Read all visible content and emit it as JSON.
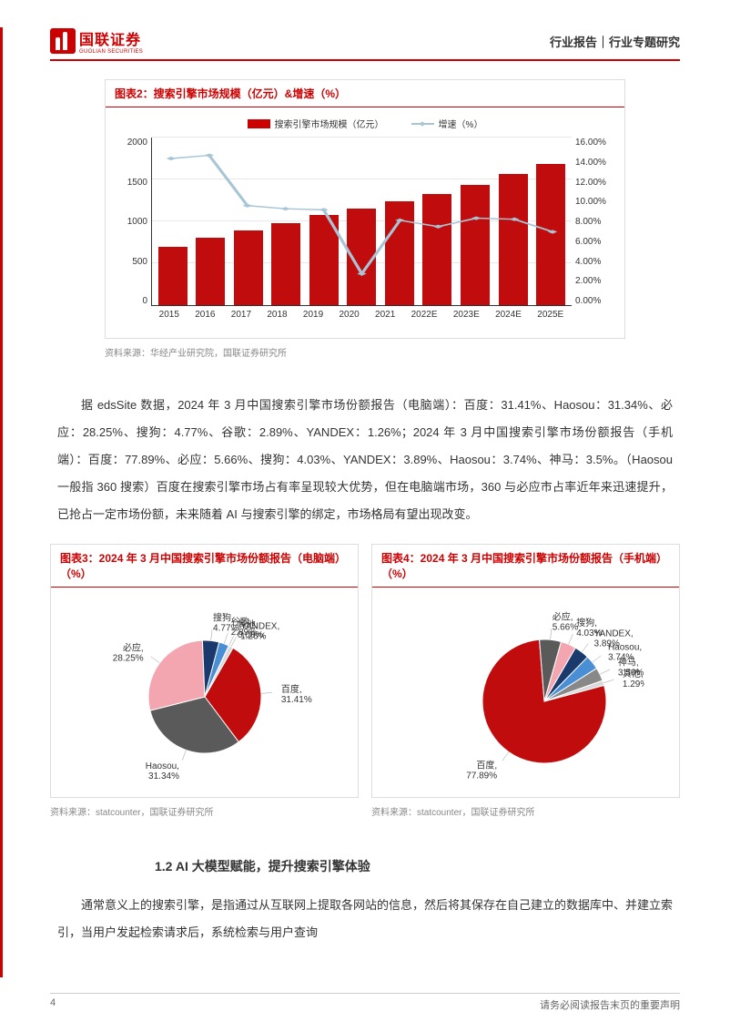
{
  "header": {
    "logo_cn": "国联证券",
    "logo_en": "GUOLIAN SECURITIES",
    "right": "行业报告｜行业专题研究"
  },
  "chart2": {
    "title": "图表2：搜索引擎市场规模（亿元）&增速（%）",
    "legend_bar": "搜索引擎市场规模（亿元）",
    "legend_line": "增速（%）",
    "source": "资料来源：华经产业研究院，国联证券研究所",
    "type": "bar+line",
    "categories": [
      "2015",
      "2016",
      "2017",
      "2018",
      "2019",
      "2020",
      "2021",
      "2022E",
      "2023E",
      "2024E",
      "2025E"
    ],
    "bar_values": [
      700,
      800,
      890,
      980,
      1080,
      1150,
      1240,
      1330,
      1440,
      1560,
      1680
    ],
    "line_values_pct": [
      14.0,
      14.3,
      9.5,
      9.2,
      9.1,
      3.0,
      8.1,
      7.5,
      8.3,
      8.2,
      7.0
    ],
    "bar_color": "#c00c0c",
    "line_color": "#a8c5d6",
    "y_left_max": 2000,
    "y_left_step": 500,
    "y_left_ticks": [
      "2000",
      "1500",
      "1000",
      "500",
      "0"
    ],
    "y_right_max": 16,
    "y_right_step": 2,
    "y_right_ticks": [
      "16.00%",
      "14.00%",
      "12.00%",
      "10.00%",
      "8.00%",
      "6.00%",
      "4.00%",
      "2.00%",
      "0.00%"
    ],
    "background": "#ffffff",
    "grid_color": "#e8e8e8"
  },
  "para1": "据 edsSite 数据，2024 年 3 月中国搜索引擎市场份额报告（电脑端）：百度：31.41%、Haosou：31.34%、必应：28.25%、搜狗：4.77%、谷歌：2.89%、YANDEX：1.26%；2024 年 3 月中国搜索引擎市场份额报告（手机端）：百度：77.89%、必应：5.66%、搜狗：4.03%、YANDEX：3.89%、Haosou：3.74%、神马：3.5%。（Haosou 一般指 360 搜索）百度在搜索引擎市场占有率呈现较大优势，但在电脑端市场，360 与必应市占率近年来迅速提升，已抢占一定市场份额，未来随着 AI 与搜索引擎的绑定，市场格局有望出现改变。",
  "chart3": {
    "title": "图表3：2024 年 3 月中国搜索引擎市场份额报告（电脑端）（%）",
    "source": "资料来源：statcounter，国联证券研究所",
    "type": "pie",
    "slices": [
      {
        "label": "百度",
        "value": 31.41,
        "color": "#c00c0c",
        "text": "百度,\n31.41%"
      },
      {
        "label": "Haosou",
        "value": 31.34,
        "color": "#5a5a5a",
        "text": "Haosou,\n31.34%"
      },
      {
        "label": "必应",
        "value": 28.25,
        "color": "#f4a6b0",
        "text": "必应,\n28.25%"
      },
      {
        "label": "搜狗",
        "value": 4.77,
        "color": "#1a3a6e",
        "text": "搜狗,\n4.77%"
      },
      {
        "label": "谷歌",
        "value": 2.89,
        "color": "#4a8fd6",
        "text": "谷歌,\n2.89%"
      },
      {
        "label": "其他",
        "value": 0.08,
        "color": "#888888",
        "text": "其他,\n0.08%"
      },
      {
        "label": "YANDEX",
        "value": 1.26,
        "color": "#d9d9d9",
        "text": "YANDEX,\n1.26%"
      }
    ]
  },
  "chart4": {
    "title": "图表4：2024 年 3 月中国搜索引擎市场份额报告（手机端）（%）",
    "source": "资料来源：statcounter，国联证券研究所",
    "type": "pie",
    "slices": [
      {
        "label": "百度",
        "value": 77.89,
        "color": "#c00c0c",
        "text": "百度,\n77.89%"
      },
      {
        "label": "必应",
        "value": 5.66,
        "color": "#5a5a5a",
        "text": "必应,\n5.66%"
      },
      {
        "label": "搜狗",
        "value": 4.03,
        "color": "#f4a6b0",
        "text": "搜狗,\n4.03%"
      },
      {
        "label": "YANDEX",
        "value": 3.89,
        "color": "#1a3a6e",
        "text": "YANDEX,\n3.89%"
      },
      {
        "label": "Haosou",
        "value": 3.74,
        "color": "#4a8fd6",
        "text": "Haosou,\n3.74%"
      },
      {
        "label": "神马",
        "value": 3.5,
        "color": "#888888",
        "text": "神马,\n3.50%"
      },
      {
        "label": "其他",
        "value": 1.29,
        "color": "#d9d9d9",
        "text": "其他,\n1.29%"
      }
    ]
  },
  "section": "1.2 AI 大模型赋能，提升搜索引擎体验",
  "para2": "通常意义上的搜索引擎，是指通过从互联网上提取各网站的信息，然后将其保存在自己建立的数据库中、并建立索引，当用户发起检索请求后，系统检索与用户查询",
  "footer": {
    "page": "4",
    "disclaimer": "请务必阅读报告末页的重要声明"
  }
}
